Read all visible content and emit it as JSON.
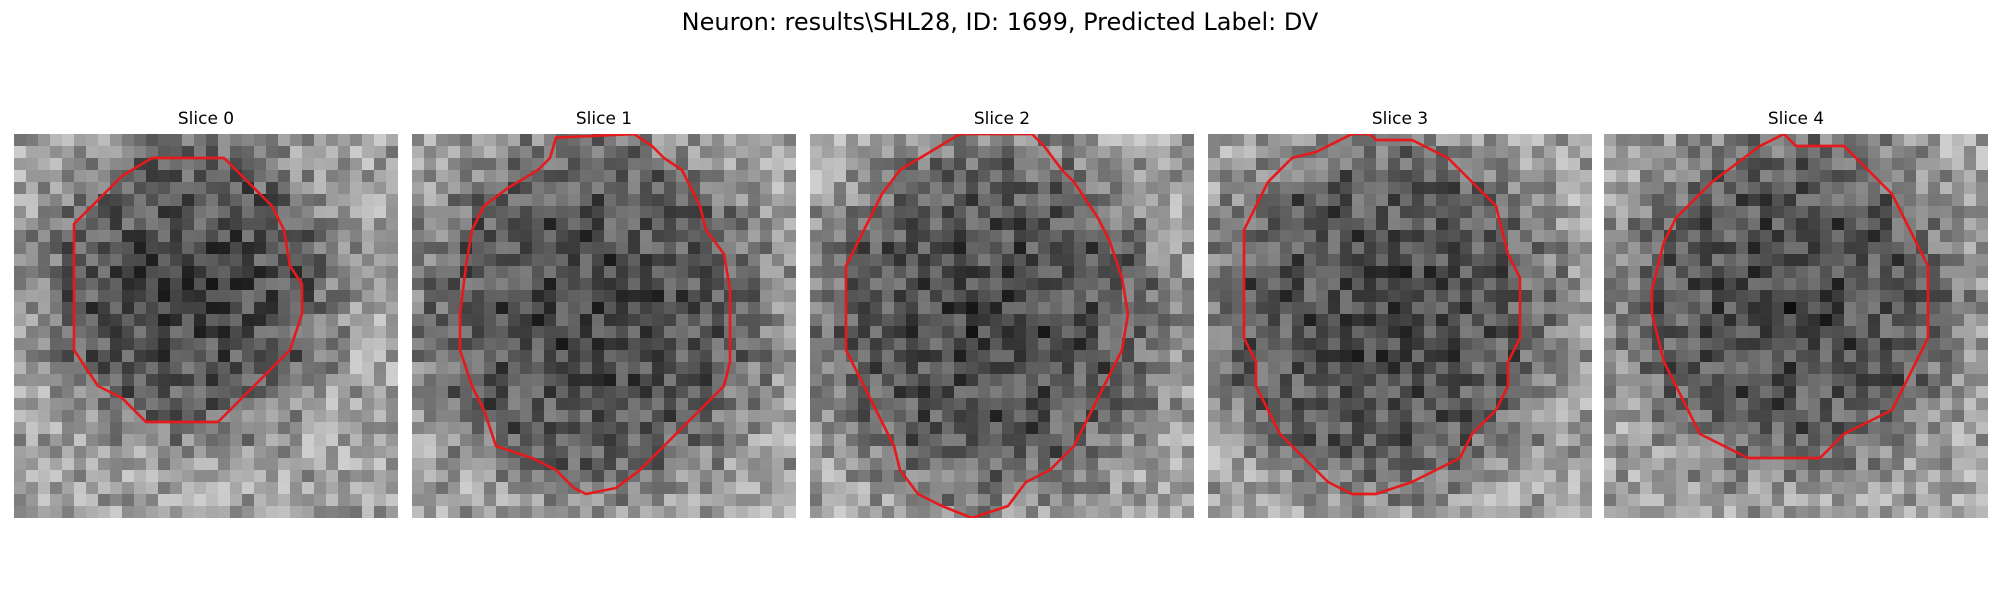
{
  "figure": {
    "title": "Neuron: results\\SHL28, ID: 1699, Predicted Label: DV"
  },
  "grid": {
    "cells": 32
  },
  "panels": [
    {
      "title": "Slice 0"
    },
    {
      "title": "Slice 1"
    },
    {
      "title": "Slice 2"
    },
    {
      "title": "Slice 3"
    },
    {
      "title": "Slice 4"
    }
  ],
  "colors": {
    "contour": "#e41a1c",
    "background": "#ffffff"
  },
  "contours": [
    [
      [
        11.5,
        2
      ],
      [
        17.5,
        2
      ],
      [
        21.5,
        6
      ],
      [
        22.5,
        8
      ],
      [
        23,
        11
      ],
      [
        24,
        12.5
      ],
      [
        24,
        15
      ],
      [
        23,
        18
      ],
      [
        20,
        21
      ],
      [
        17,
        24
      ],
      [
        11,
        24
      ],
      [
        9,
        22
      ],
      [
        7,
        21
      ],
      [
        5,
        18
      ],
      [
        5,
        13
      ],
      [
        5,
        7.5
      ],
      [
        7,
        5.5
      ],
      [
        9,
        3.5
      ]
    ],
    [
      [
        10.5,
        3
      ],
      [
        11.5,
        2
      ],
      [
        12,
        0.3
      ],
      [
        18.5,
        0
      ],
      [
        20,
        1
      ],
      [
        21,
        2
      ],
      [
        22.5,
        3
      ],
      [
        24,
        6
      ],
      [
        24.5,
        8
      ],
      [
        26,
        10
      ],
      [
        26.5,
        13
      ],
      [
        26.5,
        19
      ],
      [
        26,
        21
      ],
      [
        25,
        22
      ],
      [
        24,
        23
      ],
      [
        22,
        25
      ],
      [
        19,
        28
      ],
      [
        17,
        29.5
      ],
      [
        14.5,
        30
      ],
      [
        13.5,
        29.5
      ],
      [
        12,
        28
      ],
      [
        10,
        27
      ],
      [
        7,
        26
      ],
      [
        6,
        23
      ],
      [
        5,
        21
      ],
      [
        4,
        18
      ],
      [
        4,
        15
      ],
      [
        4.5,
        11
      ],
      [
        5,
        8
      ],
      [
        6,
        6
      ],
      [
        8,
        4.5
      ]
    ],
    [
      [
        12.5,
        0
      ],
      [
        7.5,
        3
      ],
      [
        6,
        5
      ],
      [
        5,
        7
      ],
      [
        4,
        9
      ],
      [
        3,
        11
      ],
      [
        3,
        14
      ],
      [
        3,
        18
      ],
      [
        4,
        20
      ],
      [
        5,
        22
      ],
      [
        6,
        24
      ],
      [
        7,
        26
      ],
      [
        7.5,
        28
      ],
      [
        9,
        30
      ],
      [
        11,
        31
      ],
      [
        13.5,
        32
      ],
      [
        16.5,
        31
      ],
      [
        18,
        29
      ],
      [
        20,
        28
      ],
      [
        22,
        26
      ],
      [
        23,
        24
      ],
      [
        24,
        22
      ],
      [
        25,
        20
      ],
      [
        26,
        18
      ],
      [
        26.5,
        15
      ],
      [
        26,
        12
      ],
      [
        25,
        9
      ],
      [
        24,
        7
      ],
      [
        22,
        4
      ],
      [
        21,
        3
      ],
      [
        19.5,
        1
      ],
      [
        18.5,
        0
      ]
    ],
    [
      [
        12,
        0
      ],
      [
        10,
        1
      ],
      [
        9,
        1.5
      ],
      [
        7,
        2
      ],
      [
        5,
        4
      ],
      [
        4,
        6
      ],
      [
        3,
        8
      ],
      [
        3,
        11
      ],
      [
        3,
        14
      ],
      [
        3,
        17
      ],
      [
        4,
        19
      ],
      [
        4,
        21
      ],
      [
        5,
        23
      ],
      [
        6,
        25
      ],
      [
        7,
        26
      ],
      [
        8,
        27
      ],
      [
        9,
        28
      ],
      [
        10,
        29
      ],
      [
        12,
        30
      ],
      [
        14,
        30
      ],
      [
        17,
        29
      ],
      [
        19,
        28
      ],
      [
        21,
        27
      ],
      [
        22,
        25
      ],
      [
        24,
        23
      ],
      [
        25,
        21
      ],
      [
        25,
        19
      ],
      [
        26,
        17
      ],
      [
        26,
        14
      ],
      [
        26,
        12
      ],
      [
        25,
        10
      ],
      [
        24.5,
        8
      ],
      [
        24,
        6
      ],
      [
        22,
        4
      ],
      [
        20,
        2
      ],
      [
        18,
        1
      ],
      [
        17,
        0.5
      ],
      [
        15,
        0.5
      ],
      [
        14,
        0.5
      ],
      [
        13.5,
        0
      ],
      [
        12.5,
        0
      ]
    ],
    [
      [
        13,
        1
      ],
      [
        15,
        0
      ],
      [
        16,
        1
      ],
      [
        20,
        1
      ],
      [
        22,
        3
      ],
      [
        23,
        4
      ],
      [
        24,
        5
      ],
      [
        25,
        7
      ],
      [
        26,
        9
      ],
      [
        27,
        11
      ],
      [
        27,
        14
      ],
      [
        27,
        17
      ],
      [
        26,
        19
      ],
      [
        25,
        21
      ],
      [
        24,
        23
      ],
      [
        22,
        24
      ],
      [
        20,
        25
      ],
      [
        18,
        27
      ],
      [
        15,
        27
      ],
      [
        12,
        27
      ],
      [
        10,
        26
      ],
      [
        8,
        25
      ],
      [
        7,
        23
      ],
      [
        6,
        21
      ],
      [
        5,
        19
      ],
      [
        4.5,
        17
      ],
      [
        4,
        15
      ],
      [
        4,
        13
      ],
      [
        4.5,
        11
      ],
      [
        5,
        9
      ],
      [
        6,
        7
      ],
      [
        8,
        5
      ],
      [
        9,
        4
      ],
      [
        11,
        2.5
      ]
    ]
  ]
}
